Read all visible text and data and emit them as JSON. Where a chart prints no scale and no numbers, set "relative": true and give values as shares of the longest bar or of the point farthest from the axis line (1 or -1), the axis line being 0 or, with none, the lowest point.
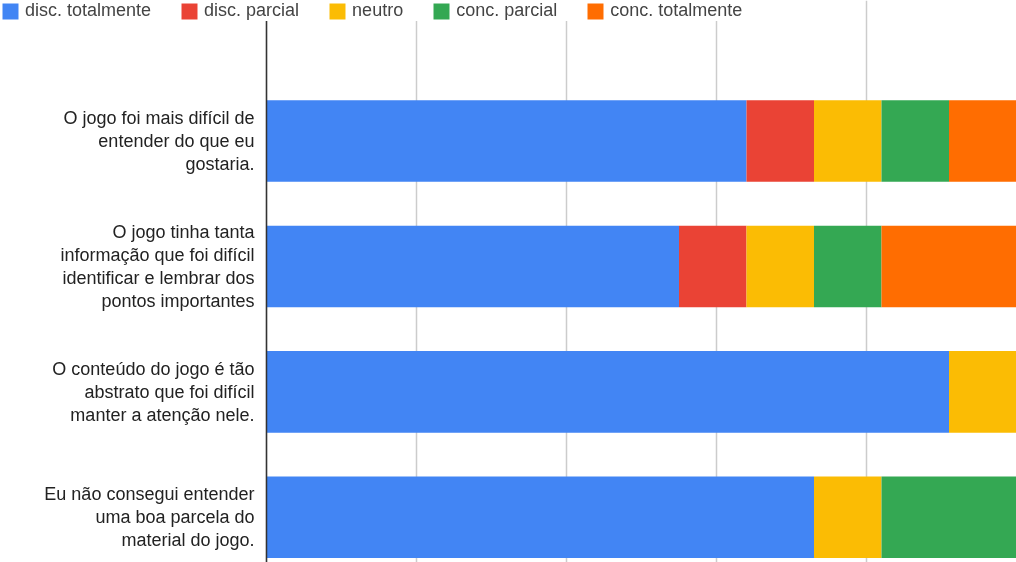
{
  "chart_data": {
    "type": "bar",
    "orientation": "horizontal",
    "stacked": true,
    "relative": true,
    "grid": "x",
    "legend": "top",
    "categories": [
      "O jogo foi mais difícil de entender do que eu gostaria.",
      "O jogo tinha tanta informação que foi difícil identificar e lembrar dos pontos importantes",
      "O conteúdo do jogo é tão abstrato que foi difícil manter a atenção nele.",
      "Eu não consegui entender uma boa parcela do material do jogo."
    ],
    "series": [
      {
        "name": "disc. totalmente",
        "color": "#4285f4",
        "values": [
          0.64,
          0.55,
          0.91,
          0.73
        ]
      },
      {
        "name": "disc. parcial",
        "color": "#ea4335",
        "values": [
          0.09,
          0.09,
          0,
          0
        ]
      },
      {
        "name": "neutro",
        "color": "#fbbc04",
        "values": [
          0.09,
          0.09,
          0.09,
          0.09
        ]
      },
      {
        "name": "conc. parcial",
        "color": "#34a853",
        "values": [
          0.09,
          0.09,
          0,
          0.18
        ]
      },
      {
        "name": "conc. totalmente",
        "color": "#ff6d01",
        "values": [
          0.09,
          0.18,
          0,
          0
        ]
      }
    ]
  }
}
